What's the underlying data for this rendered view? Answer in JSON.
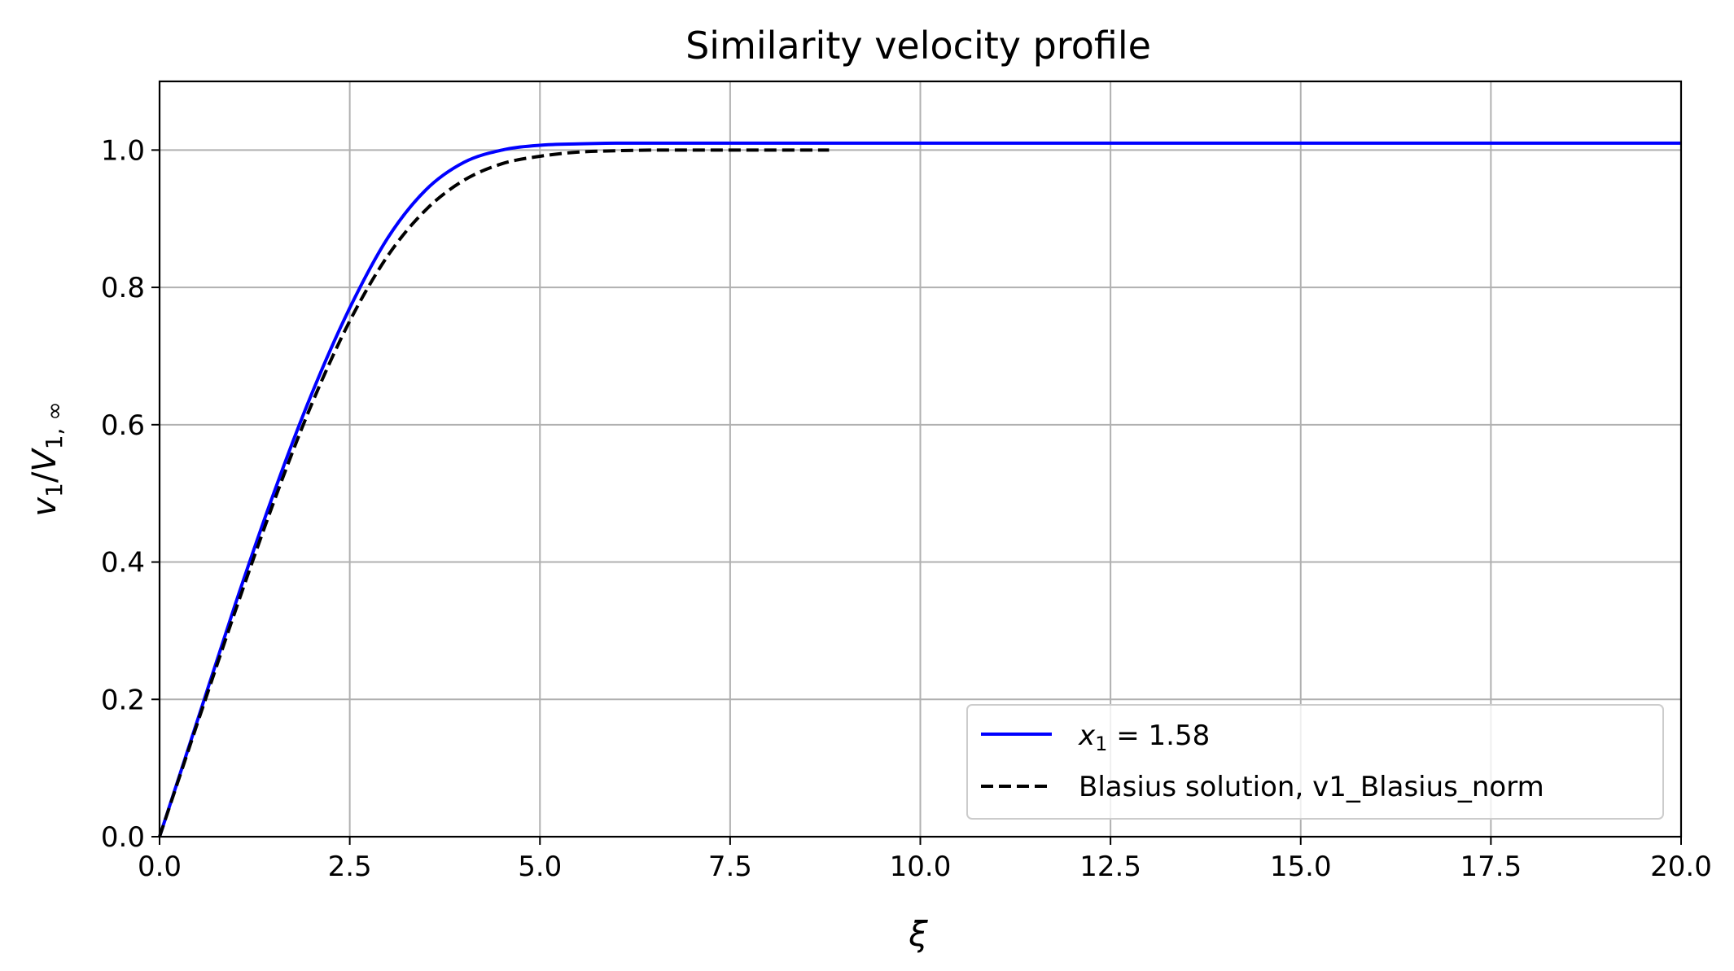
{
  "chart_data": {
    "type": "line",
    "title": "Similarity velocity profile",
    "xlabel": "ξ",
    "ylabel": "v1/V1,∞",
    "xlim": [
      0,
      20
    ],
    "ylim": [
      0,
      1.1
    ],
    "x_ticks": [
      0.0,
      2.5,
      5.0,
      7.5,
      10.0,
      12.5,
      15.0,
      17.5,
      20.0
    ],
    "x_tick_labels": [
      "0.0",
      "2.5",
      "5.0",
      "7.5",
      "10.0",
      "12.5",
      "15.0",
      "17.5",
      "20.0"
    ],
    "y_ticks": [
      0.0,
      0.2,
      0.4,
      0.6,
      0.8,
      1.0
    ],
    "y_tick_labels": [
      "0.0",
      "0.2",
      "0.4",
      "0.6",
      "0.8",
      "1.0"
    ],
    "grid": true,
    "legend_position": "lower-right",
    "series": [
      {
        "name": "x1 = 1.58",
        "color": "#0000ff",
        "style": "solid",
        "x": [
          0.0,
          0.5,
          1.0,
          1.5,
          2.0,
          2.5,
          3.0,
          3.5,
          4.0,
          4.5,
          5.0,
          5.5,
          6.0,
          7.0,
          8.0,
          10.0,
          12.5,
          15.0,
          17.5,
          20.0
        ],
        "y": [
          0.0,
          0.17,
          0.34,
          0.5,
          0.645,
          0.77,
          0.872,
          0.942,
          0.982,
          1.0,
          1.007,
          1.009,
          1.01,
          1.01,
          1.01,
          1.01,
          1.01,
          1.01,
          1.01,
          1.01
        ]
      },
      {
        "name": "Blasius solution, v1_Blasius_norm",
        "color": "#000000",
        "style": "dashed",
        "x": [
          0.0,
          0.5,
          1.0,
          1.5,
          2.0,
          2.5,
          3.0,
          3.5,
          4.0,
          4.5,
          5.0,
          5.5,
          6.0,
          6.5,
          7.0,
          7.5,
          8.0,
          8.8
        ],
        "y": [
          0.0,
          0.166,
          0.33,
          0.487,
          0.63,
          0.751,
          0.846,
          0.913,
          0.956,
          0.98,
          0.991,
          0.997,
          0.999,
          1.0,
          1.0,
          1.0,
          1.0,
          1.0
        ]
      }
    ]
  }
}
